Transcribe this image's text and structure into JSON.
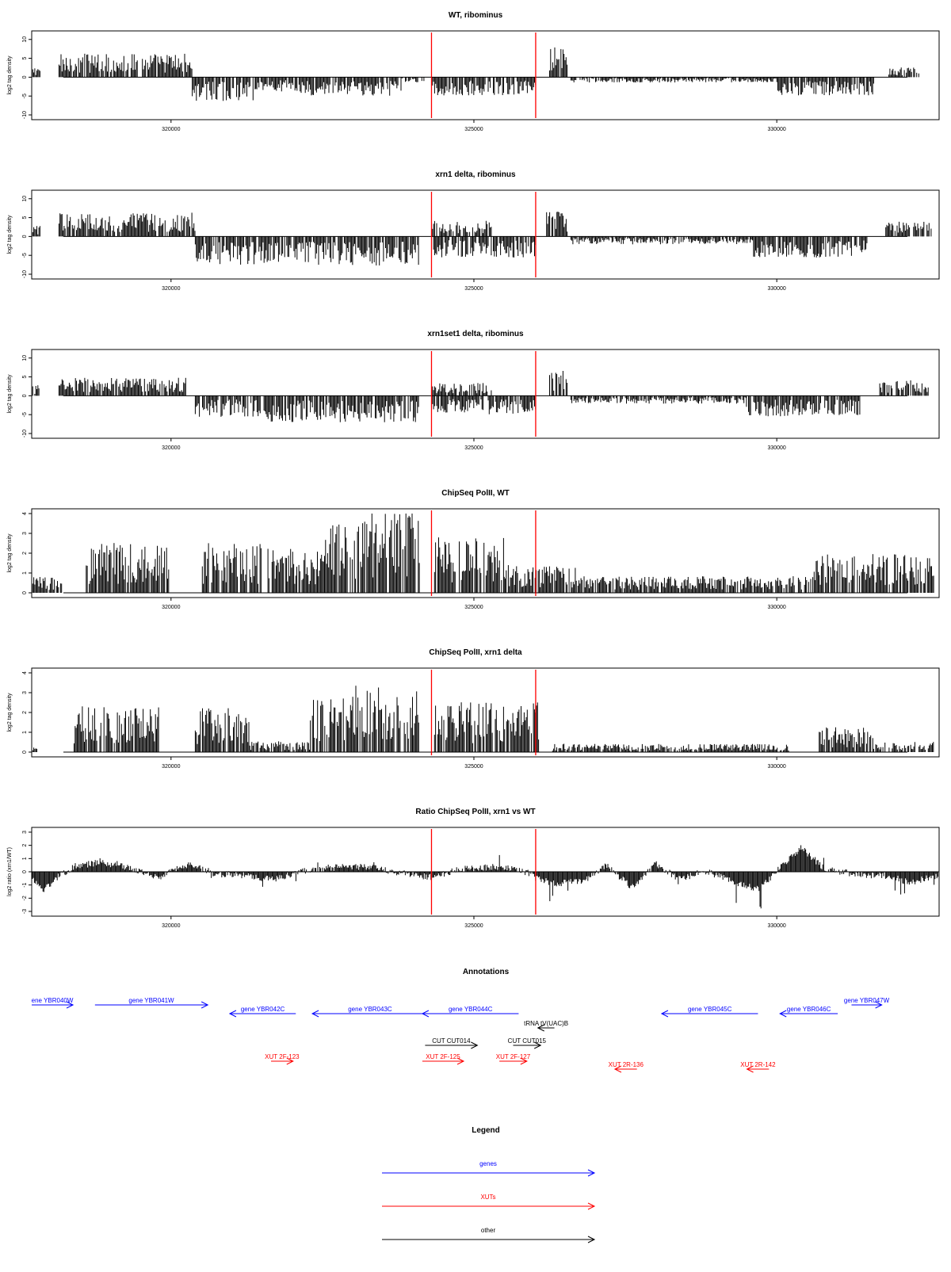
{
  "colors": {
    "gene": "#0000ff",
    "xut": "#ff0000",
    "other": "#000000",
    "marker": "#ff0000",
    "signal": "#000000"
  },
  "chart_data": [
    {
      "type": "bar",
      "title": "WT, ribominus",
      "ylabel": "log2 tag density",
      "xlim": [
        317700,
        332680
      ],
      "ylim": [
        -10,
        11
      ],
      "yticks": [
        "-10",
        "-5",
        "0",
        "5",
        "10"
      ],
      "yticks_values": [
        -10,
        -5,
        0,
        5,
        10
      ],
      "xticks": [
        "320000",
        "325000",
        "330000"
      ],
      "xticks_values": [
        320000,
        325000,
        330000
      ],
      "markers": [
        324300,
        326020
      ],
      "segments": [
        {
          "start": 317700,
          "end": 317850,
          "value": 2
        },
        {
          "start": 318150,
          "end": 320350,
          "value": 4.5
        },
        {
          "start": 320350,
          "end": 321400,
          "value": -4.5
        },
        {
          "start": 321400,
          "end": 322300,
          "value": -3
        },
        {
          "start": 322300,
          "end": 323800,
          "value": -3.5
        },
        {
          "start": 323800,
          "end": 324200,
          "value": -1
        },
        {
          "start": 324300,
          "end": 326020,
          "value": -3.5
        },
        {
          "start": 326250,
          "end": 326550,
          "value": 6
        },
        {
          "start": 326600,
          "end": 327400,
          "value": -1
        },
        {
          "start": 327400,
          "end": 330000,
          "value": -1
        },
        {
          "start": 330000,
          "end": 331600,
          "value": -3.5
        },
        {
          "start": 331850,
          "end": 332350,
          "value": 2
        }
      ]
    },
    {
      "type": "bar",
      "title": "xrn1 delta, ribominus",
      "ylabel": "log2 tag density",
      "xlim": [
        317700,
        332680
      ],
      "ylim": [
        -10,
        11
      ],
      "yticks": [
        "-10",
        "-5",
        "0",
        "5",
        "10"
      ],
      "yticks_values": [
        -10,
        -5,
        0,
        5,
        10
      ],
      "xticks": [
        "320000",
        "325000",
        "330000"
      ],
      "xticks_values": [
        320000,
        325000,
        330000
      ],
      "markers": [
        324300,
        326020
      ],
      "segments": [
        {
          "start": 317700,
          "end": 317850,
          "value": 2
        },
        {
          "start": 318150,
          "end": 320400,
          "value": 4.5
        },
        {
          "start": 320400,
          "end": 321400,
          "value": -5.5
        },
        {
          "start": 321400,
          "end": 322300,
          "value": -5
        },
        {
          "start": 322300,
          "end": 324100,
          "value": -5.5
        },
        {
          "start": 324300,
          "end": 325300,
          "value": 3
        },
        {
          "start": 324300,
          "end": 326020,
          "value": -4
        },
        {
          "start": 326200,
          "end": 326550,
          "value": 5
        },
        {
          "start": 326600,
          "end": 329600,
          "value": -1.5
        },
        {
          "start": 329600,
          "end": 331500,
          "value": -4
        },
        {
          "start": 331800,
          "end": 332550,
          "value": 3
        }
      ]
    },
    {
      "type": "bar",
      "title": "xrn1set1 delta, ribominus",
      "ylabel": "log2 tag density",
      "xlim": [
        317700,
        332680
      ],
      "ylim": [
        -10,
        11
      ],
      "yticks": [
        "-10",
        "-5",
        "0",
        "5",
        "10"
      ],
      "yticks_values": [
        -10,
        -5,
        0,
        5,
        10
      ],
      "xticks": [
        "320000",
        "325000",
        "330000"
      ],
      "xticks_values": [
        320000,
        325000,
        330000
      ],
      "markers": [
        324300,
        326020
      ],
      "segments": [
        {
          "start": 317700,
          "end": 317850,
          "value": 2
        },
        {
          "start": 318150,
          "end": 320250,
          "value": 3.5
        },
        {
          "start": 320400,
          "end": 321500,
          "value": -4
        },
        {
          "start": 321500,
          "end": 324100,
          "value": -5
        },
        {
          "start": 324300,
          "end": 325300,
          "value": 2.5
        },
        {
          "start": 324300,
          "end": 326020,
          "value": -3.5
        },
        {
          "start": 326250,
          "end": 326550,
          "value": 5
        },
        {
          "start": 326600,
          "end": 329500,
          "value": -1.5
        },
        {
          "start": 329500,
          "end": 331400,
          "value": -4
        },
        {
          "start": 331700,
          "end": 332500,
          "value": 3
        }
      ]
    },
    {
      "type": "bar",
      "title": "ChipSeq PolII, WT",
      "ylabel": "log2 tag density",
      "xlim": [
        317700,
        332680
      ],
      "ylim": [
        0,
        4
      ],
      "yticks": [
        "0",
        "1",
        "2",
        "3",
        "4"
      ],
      "yticks_values": [
        0,
        1,
        2,
        3,
        4
      ],
      "xticks": [
        "320000",
        "325000",
        "330000"
      ],
      "xticks_values": [
        320000,
        325000,
        330000
      ],
      "markers": [
        324300,
        326020
      ],
      "segments": [
        {
          "start": 317700,
          "end": 318200,
          "value": 0.6
        },
        {
          "start": 318600,
          "end": 320000,
          "value": 1.8
        },
        {
          "start": 320500,
          "end": 321500,
          "value": 1.8
        },
        {
          "start": 321600,
          "end": 322500,
          "value": 1.6
        },
        {
          "start": 322500,
          "end": 323300,
          "value": 2.6
        },
        {
          "start": 323300,
          "end": 324100,
          "value": 3
        },
        {
          "start": 324350,
          "end": 325500,
          "value": 2
        },
        {
          "start": 325500,
          "end": 326700,
          "value": 1
        },
        {
          "start": 326700,
          "end": 330600,
          "value": 0.6
        },
        {
          "start": 330600,
          "end": 332600,
          "value": 1.4
        }
      ]
    },
    {
      "type": "bar",
      "title": "ChipSeq PolII, xrn1 delta",
      "ylabel": "log2 tag density",
      "xlim": [
        317700,
        332680
      ],
      "ylim": [
        0,
        4
      ],
      "yticks": [
        "0",
        "1",
        "2",
        "3",
        "4"
      ],
      "yticks_values": [
        0,
        1,
        2,
        3,
        4
      ],
      "xticks": [
        "320000",
        "325000",
        "330000"
      ],
      "xticks_values": [
        320000,
        325000,
        330000
      ],
      "markers": [
        324300,
        326020
      ],
      "segments": [
        {
          "start": 317700,
          "end": 317800,
          "value": 0.3
        },
        {
          "start": 318400,
          "end": 319800,
          "value": 1.7
        },
        {
          "start": 320400,
          "end": 321300,
          "value": 1.6
        },
        {
          "start": 321300,
          "end": 322300,
          "value": 0.4
        },
        {
          "start": 322300,
          "end": 323000,
          "value": 2
        },
        {
          "start": 323000,
          "end": 324100,
          "value": 2.4
        },
        {
          "start": 324350,
          "end": 326100,
          "value": 1.8
        },
        {
          "start": 326300,
          "end": 330200,
          "value": 0.3
        },
        {
          "start": 330700,
          "end": 331600,
          "value": 0.9
        },
        {
          "start": 331600,
          "end": 332600,
          "value": 0.4
        }
      ]
    },
    {
      "type": "area",
      "title": "Ratio ChipSeq PolII, xrn1 vs WT",
      "ylabel": "log2 ratio (xrn1/WT)",
      "xlim": [
        317700,
        332680
      ],
      "ylim": [
        -3,
        3
      ],
      "yticks": [
        "-3",
        "-2",
        "-1",
        "0",
        "1",
        "2",
        "3"
      ],
      "yticks_values": [
        -3,
        -2,
        -1,
        0,
        1,
        2,
        3
      ],
      "xticks": [
        "320000",
        "325000",
        "330000"
      ],
      "xticks_values": [
        320000,
        325000,
        330000
      ],
      "markers": [
        324300,
        326020
      ],
      "profile": [
        [
          317700,
          -0.5
        ],
        [
          317900,
          -1.4
        ],
        [
          318100,
          -0.5
        ],
        [
          318400,
          0.4
        ],
        [
          318800,
          0.7
        ],
        [
          319300,
          0.3
        ],
        [
          319800,
          -0.4
        ],
        [
          320300,
          0.6
        ],
        [
          320700,
          -0.1
        ],
        [
          321300,
          -0.3
        ],
        [
          321700,
          -0.6
        ],
        [
          322200,
          0.1
        ],
        [
          322600,
          0.3
        ],
        [
          323200,
          0.4
        ],
        [
          323800,
          -0.1
        ],
        [
          324300,
          -0.4
        ],
        [
          324800,
          0.2
        ],
        [
          325400,
          0.4
        ],
        [
          325900,
          -0.1
        ],
        [
          326300,
          -0.9
        ],
        [
          326800,
          -0.7
        ],
        [
          327200,
          0.5
        ],
        [
          327600,
          -1.2
        ],
        [
          328000,
          0.6
        ],
        [
          328400,
          -0.6
        ],
        [
          328800,
          0.1
        ],
        [
          329300,
          -0.8
        ],
        [
          329700,
          -1.3
        ],
        [
          330100,
          0.5
        ],
        [
          330400,
          1.8
        ],
        [
          330800,
          0.2
        ],
        [
          331300,
          -0.2
        ],
        [
          331800,
          -0.3
        ],
        [
          332200,
          -0.8
        ],
        [
          332680,
          -0.3
        ]
      ]
    }
  ],
  "panel_titles": {
    "p1": "WT, ribominus",
    "p2": "xrn1 delta, ribominus",
    "p3": "xrn1set1 delta, ribominus",
    "p4": "ChipSeq PolII, WT",
    "p5": "ChipSeq PolII, xrn1 delta",
    "p6": "Ratio ChipSeq PolII, xrn1 vs WT"
  },
  "annotations": {
    "title": "Annotations",
    "xlim": [
      317200,
      332900
    ],
    "features": [
      {
        "label": "ene YBR040W",
        "start": 317200,
        "end": 317950,
        "strand": "+",
        "kind": "gene",
        "row": 0
      },
      {
        "label": "gene YBR041W",
        "start": 318350,
        "end": 320400,
        "strand": "+",
        "kind": "gene",
        "row": 0
      },
      {
        "label": "gene YBR042C",
        "start": 320800,
        "end": 322000,
        "strand": "-",
        "kind": "gene",
        "row": 1
      },
      {
        "label": "gene YBR043C",
        "start": 322300,
        "end": 324400,
        "strand": "-",
        "kind": "gene",
        "row": 1
      },
      {
        "label": "gene YBR044C",
        "start": 324300,
        "end": 326050,
        "strand": "-",
        "kind": "gene",
        "row": 1
      },
      {
        "label": "tRNA tV(UAC)B",
        "start": 326400,
        "end": 326700,
        "strand": "-",
        "kind": "other",
        "row": 2
      },
      {
        "label": "gene YBR045C",
        "start": 328650,
        "end": 330400,
        "strand": "-",
        "kind": "gene",
        "row": 1
      },
      {
        "label": "gene YBR046C",
        "start": 330800,
        "end": 331850,
        "strand": "-",
        "kind": "gene",
        "row": 1
      },
      {
        "label": "gene YBR047W",
        "start": 332100,
        "end": 332650,
        "strand": "+",
        "kind": "gene",
        "row": 0
      },
      {
        "label": "CUT CUT014",
        "start": 324350,
        "end": 325300,
        "strand": "+",
        "kind": "other",
        "row": 3
      },
      {
        "label": "CUT CUT015",
        "start": 325950,
        "end": 326450,
        "strand": "+",
        "kind": "other",
        "row": 3
      },
      {
        "label": "XUT 2F-123",
        "start": 321550,
        "end": 321950,
        "strand": "+",
        "kind": "xut",
        "row": 4
      },
      {
        "label": "XUT 2F-125",
        "start": 324300,
        "end": 325050,
        "strand": "+",
        "kind": "xut",
        "row": 4
      },
      {
        "label": "XUT 2F-127",
        "start": 325700,
        "end": 326200,
        "strand": "+",
        "kind": "xut",
        "row": 4
      },
      {
        "label": "XUT 2R-136",
        "start": 327800,
        "end": 328200,
        "strand": "-",
        "kind": "xut",
        "row": 5
      },
      {
        "label": "XUT 2R-142",
        "start": 330200,
        "end": 330600,
        "strand": "-",
        "kind": "xut",
        "row": 5
      }
    ]
  },
  "legend": {
    "title": "Legend",
    "items": [
      {
        "label": "genes",
        "kind": "gene"
      },
      {
        "label": "XUTs",
        "kind": "xut"
      },
      {
        "label": "other",
        "kind": "other"
      }
    ]
  }
}
